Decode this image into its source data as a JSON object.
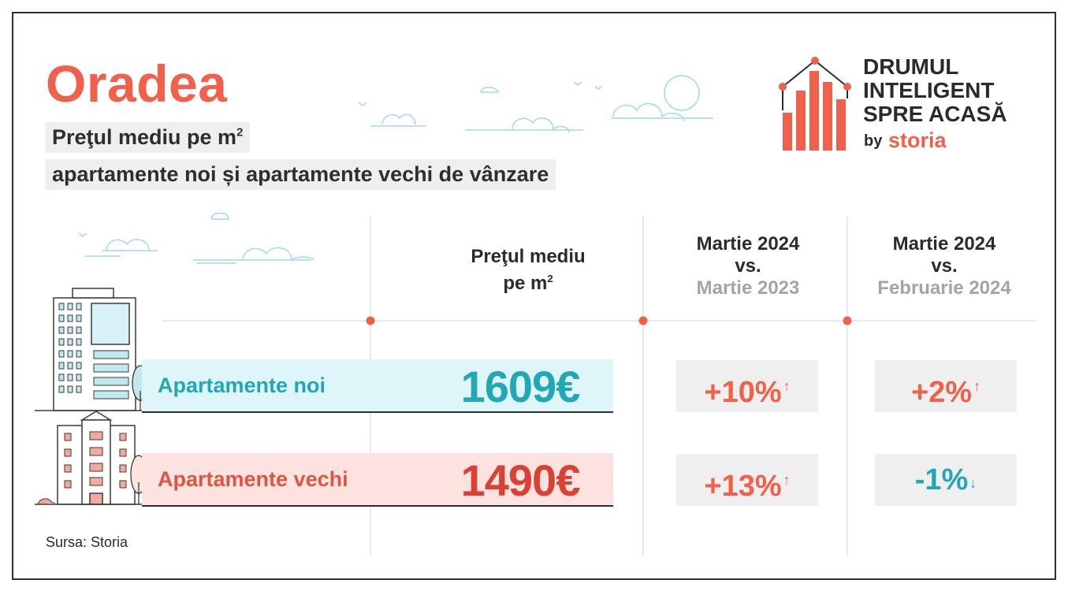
{
  "title": "Oradea",
  "subtitle": {
    "line1": "Preţul mediu pe m",
    "line1_sup": "2",
    "line2": "apartamente noi și apartamente vechi de vânzare"
  },
  "logo": {
    "line1": "DRUMUL",
    "line2": "INTELIGENT",
    "line3": "SPRE ACASĂ",
    "by": "by",
    "brand": "storia",
    "icon": "house-bar-chart-icon"
  },
  "columns": {
    "price": {
      "line1": "Preţul mediu",
      "line2": "pe m",
      "sup": "2"
    },
    "annual": {
      "line1": "Martie 2024",
      "line2": "vs.",
      "line3": "Martie 2023"
    },
    "monthly": {
      "line1": "Martie 2024",
      "line2": "vs.",
      "line3": "Februarie 2024"
    }
  },
  "rows": [
    {
      "label": "Apartamente noi",
      "price": "1609€",
      "annual": "+10%",
      "annual_dir": "up",
      "monthly": "+2%",
      "monthly_dir": "up",
      "color": "#21a7b5"
    },
    {
      "label": "Apartamente vechi",
      "price": "1490€",
      "annual": "+13%",
      "annual_dir": "up",
      "monthly": "-1%",
      "monthly_dir": "down",
      "color": "#d94133"
    }
  ],
  "arrows": {
    "up": "↑",
    "down": "↓"
  },
  "source": "Sursa: Storia",
  "colors": {
    "accent": "#f0604a",
    "teal": "#21a7b5",
    "teal_bg": "#def5f9",
    "pink_bg": "#fde3df",
    "grey_bg": "#efefef"
  }
}
